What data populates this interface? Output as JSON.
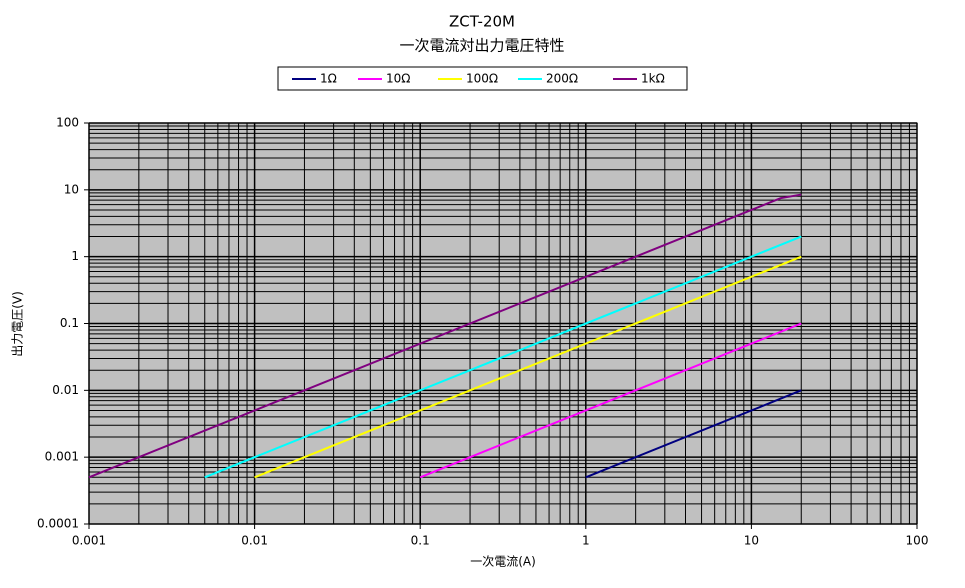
{
  "chart_data": {
    "type": "line",
    "title": "ZCT-20M",
    "subtitle": "一次電流対出力電圧特性",
    "xlabel": "一次電流(A)",
    "ylabel": "出力電圧(V)",
    "xscale": "log",
    "yscale": "log",
    "xlim": [
      0.001,
      100
    ],
    "ylim": [
      0.0001,
      100
    ],
    "xticks": [
      0.001,
      0.01,
      0.1,
      1,
      10,
      100
    ],
    "yticks": [
      0.0001,
      0.001,
      0.01,
      0.1,
      1,
      10,
      100
    ],
    "grid": true,
    "minor_grid": true,
    "legend": "top",
    "series": [
      {
        "name": "1Ω",
        "color": "#000080",
        "x": [
          1,
          20
        ],
        "values": [
          0.0005,
          0.01
        ]
      },
      {
        "name": "10Ω",
        "color": "#ff00ff",
        "x": [
          0.1,
          20
        ],
        "values": [
          0.0005,
          0.1
        ]
      },
      {
        "name": "100Ω",
        "color": "#ffff00",
        "x": [
          0.01,
          20
        ],
        "values": [
          0.0005,
          1
        ]
      },
      {
        "name": "200Ω",
        "color": "#00ffff",
        "x": [
          0.005,
          20
        ],
        "values": [
          0.0005,
          2
        ]
      },
      {
        "name": "1kΩ",
        "color": "#800080",
        "x": [
          0.001,
          10,
          13,
          15,
          20
        ],
        "values": [
          0.0005,
          5,
          6.5,
          7.5,
          8.5
        ]
      }
    ]
  }
}
